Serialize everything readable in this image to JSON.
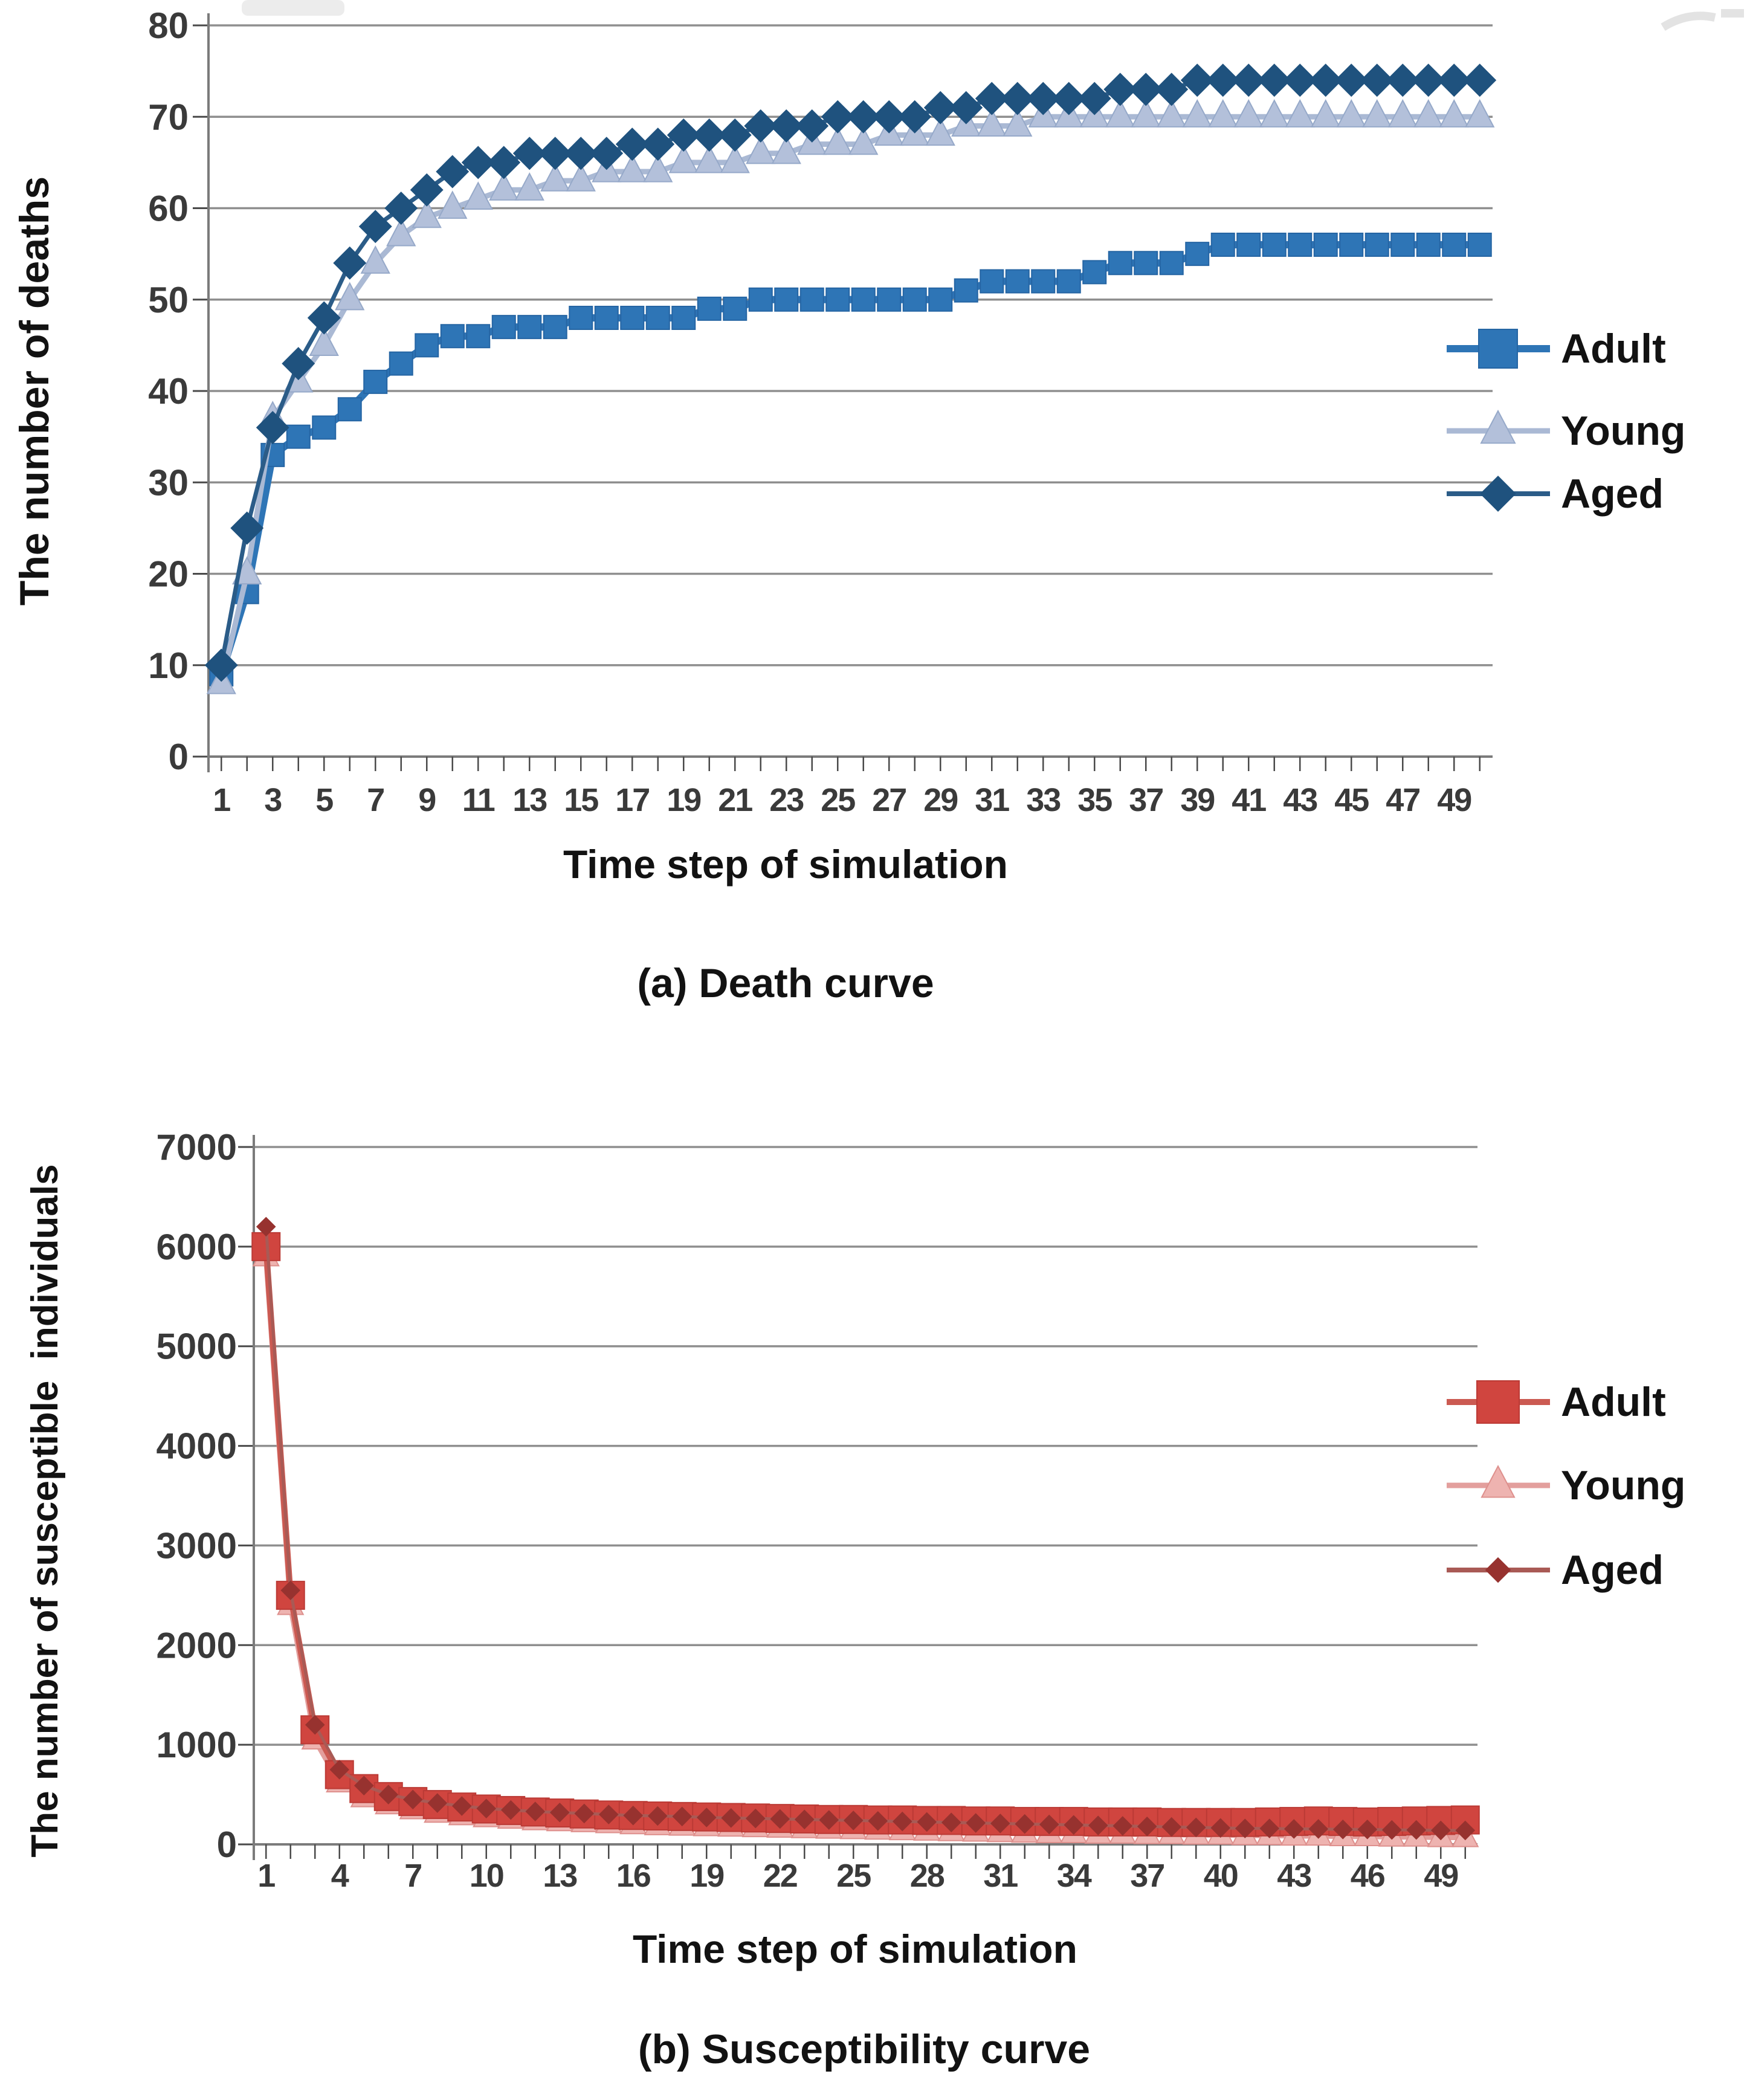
{
  "page": {
    "background": "#ffffff"
  },
  "chart_data": [
    {
      "type": "line",
      "title": "(a) Death curve",
      "xlabel": "Time step of simulation",
      "ylabel": "The number of deaths",
      "x_start": 1,
      "x_step": 1,
      "x_count": 50,
      "ylim": [
        0,
        80
      ],
      "y_ticks": [
        0,
        10,
        20,
        30,
        40,
        50,
        60,
        70,
        80
      ],
      "x_tick_positions": [
        1,
        3,
        5,
        7,
        9,
        11,
        13,
        15,
        17,
        19,
        21,
        23,
        25,
        27,
        29,
        31,
        33,
        35,
        37,
        39,
        41,
        43,
        45,
        47,
        49
      ],
      "x_tick_labels": [
        "1",
        "3",
        "5",
        "7",
        "9",
        "11",
        "13",
        "15",
        "17",
        "19",
        "21",
        "23",
        "25",
        "27",
        "29",
        "31",
        "33",
        "35",
        "37",
        "39",
        "41",
        "43",
        "45",
        "47",
        "49"
      ],
      "grid": "horizontal",
      "legend_position": "right",
      "series": [
        {
          "name": "Adult",
          "marker": "square",
          "z": 0,
          "color": "#2e75b6",
          "edge_color": "#2565a3",
          "line_color": "#2e75b6",
          "values": [
            9,
            18,
            33,
            35,
            36,
            38,
            41,
            43,
            45,
            46,
            46,
            47,
            47,
            47,
            48,
            48,
            48,
            48,
            48,
            49,
            49,
            50,
            50,
            50,
            50,
            50,
            50,
            50,
            50,
            51,
            52,
            52,
            52,
            52,
            53,
            54,
            54,
            54,
            55,
            56,
            56,
            56,
            56,
            56,
            56,
            56,
            56,
            56,
            56,
            56
          ]
        },
        {
          "name": "Young",
          "marker": "triangle",
          "z": 1,
          "color": "#b3c0da",
          "edge_color": "#96a9c9",
          "line_color": "#aab9d4",
          "values": [
            8,
            20,
            37,
            41,
            45,
            50,
            54,
            57,
            59,
            60,
            61,
            62,
            62,
            63,
            63,
            64,
            64,
            64,
            65,
            65,
            65,
            66,
            66,
            67,
            67,
            67,
            68,
            68,
            68,
            69,
            69,
            69,
            70,
            70,
            70,
            70,
            70,
            70,
            70,
            70,
            70,
            70,
            70,
            70,
            70,
            70,
            70,
            70,
            70,
            70
          ]
        },
        {
          "name": "Aged",
          "marker": "diamond",
          "z": 2,
          "color": "#1f527e",
          "edge_color": "#1f527e",
          "line_color": "#2b5c88",
          "values": [
            10,
            25,
            36,
            43,
            48,
            54,
            58,
            60,
            62,
            64,
            65,
            65,
            66,
            66,
            66,
            66,
            67,
            67,
            68,
            68,
            68,
            69,
            69,
            69,
            70,
            70,
            70,
            70,
            71,
            71,
            72,
            72,
            72,
            72,
            72,
            73,
            73,
            73,
            74,
            74,
            74,
            74,
            74,
            74,
            74,
            74,
            74,
            74,
            74,
            74
          ]
        }
      ]
    },
    {
      "type": "line",
      "title": "(b) Susceptibility curve",
      "xlabel": "Time step of simulation",
      "ylabel": "The number of susceptible  individuals",
      "x_start": 1,
      "x_step": 1,
      "x_count": 50,
      "ylim": [
        0,
        7000
      ],
      "y_ticks": [
        0,
        1000,
        2000,
        3000,
        4000,
        5000,
        6000,
        7000
      ],
      "x_tick_positions": [
        1,
        4,
        7,
        10,
        13,
        16,
        19,
        22,
        25,
        28,
        31,
        34,
        37,
        40,
        43,
        46,
        49
      ],
      "x_tick_labels": [
        "1",
        "4",
        "7",
        "10",
        "13",
        "16",
        "19",
        "22",
        "25",
        "28",
        "31",
        "34",
        "37",
        "40",
        "43",
        "46",
        "49"
      ],
      "grid": "horizontal",
      "legend_position": "right",
      "series": [
        {
          "name": "Adult",
          "marker": "square",
          "z": 1,
          "color": "#d0453f",
          "edge_color": "#bb3a35",
          "line_color": "#cb5a52",
          "values": [
            6000,
            2500,
            1150,
            700,
            560,
            480,
            430,
            400,
            375,
            355,
            340,
            325,
            315,
            305,
            295,
            290,
            285,
            280,
            275,
            270,
            265,
            260,
            255,
            250,
            250,
            245,
            245,
            240,
            240,
            235,
            235,
            230,
            230,
            230,
            225,
            225,
            225,
            220,
            220,
            220,
            220,
            225,
            230,
            235,
            230,
            225,
            230,
            235,
            240,
            245
          ]
        },
        {
          "name": "Young",
          "marker": "triangle",
          "z": 0,
          "color": "#eeb3b0",
          "edge_color": "#de908d",
          "line_color": "#e39f9d",
          "values": [
            5900,
            2400,
            1050,
            620,
            470,
            400,
            350,
            315,
            290,
            270,
            255,
            240,
            230,
            220,
            210,
            200,
            190,
            185,
            180,
            175,
            170,
            165,
            160,
            155,
            150,
            145,
            140,
            135,
            130,
            125,
            120,
            115,
            110,
            110,
            105,
            105,
            100,
            100,
            95,
            95,
            90,
            90,
            85,
            85,
            80,
            80,
            75,
            75,
            70,
            70
          ]
        },
        {
          "name": "Aged",
          "marker": "diamond",
          "z": 2,
          "color": "#97322f",
          "edge_color": "#97322f",
          "line_color": "#a95a55",
          "values": [
            6200,
            2550,
            1200,
            750,
            590,
            500,
            450,
            415,
            385,
            360,
            345,
            330,
            320,
            310,
            300,
            290,
            285,
            280,
            270,
            265,
            260,
            255,
            250,
            245,
            240,
            235,
            230,
            225,
            220,
            215,
            210,
            205,
            200,
            195,
            190,
            185,
            180,
            175,
            170,
            165,
            160,
            160,
            155,
            155,
            150,
            150,
            145,
            145,
            140,
            140
          ]
        }
      ]
    }
  ],
  "style": {
    "grid_color": "#8f8f8f",
    "axis_color": "#7b7b7b",
    "tick_color": "#4a4a4a",
    "text_color": "#3a3a3a",
    "title_color": "#121212"
  }
}
